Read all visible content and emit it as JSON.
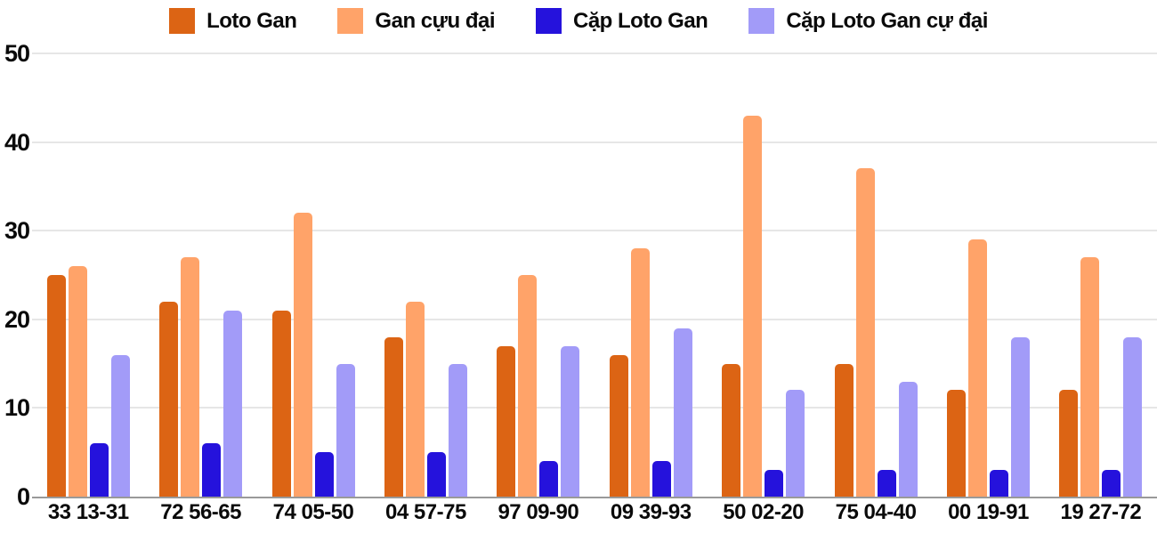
{
  "chart_data": {
    "type": "bar",
    "title": "",
    "xlabel": "",
    "ylabel": "",
    "categories": [
      "33 13-31",
      "72 56-65",
      "74 05-50",
      "04 57-75",
      "97 09-90",
      "09 39-93",
      "50 02-20",
      "75 04-40",
      "00 19-91",
      "19 27-72"
    ],
    "series": [
      {
        "name": "Loto Gan",
        "slug": "loto-gan",
        "color": "#DC6414",
        "values": [
          25,
          22,
          21,
          18,
          17,
          16,
          15,
          15,
          12,
          12
        ]
      },
      {
        "name": "Gan cựu đại",
        "slug": "gan-cuu-dai",
        "color": "#FFA369",
        "values": [
          26,
          27,
          32,
          22,
          25,
          28,
          43,
          37,
          29,
          27
        ]
      },
      {
        "name": "Cặp Loto Gan",
        "slug": "cap-loto-gan",
        "color": "#2512DC",
        "values": [
          6,
          6,
          5,
          5,
          4,
          4,
          3,
          3,
          3,
          3
        ]
      },
      {
        "name": "Cặp Loto Gan cự đại",
        "slug": "cap-loto-gan-cu-dai",
        "color": "#A29BF8",
        "values": [
          16,
          21,
          15,
          15,
          17,
          19,
          12,
          13,
          18,
          18
        ]
      }
    ],
    "ylim": [
      0,
      50
    ],
    "yticks": [
      0,
      10,
      20,
      30,
      40,
      50
    ],
    "grid": "horizontal",
    "legend_position": "top"
  },
  "colors": {
    "background": "#FFFFFF",
    "gridline": "#E6E6E6",
    "baseline": "#999999",
    "text": "#0A0A0A"
  }
}
